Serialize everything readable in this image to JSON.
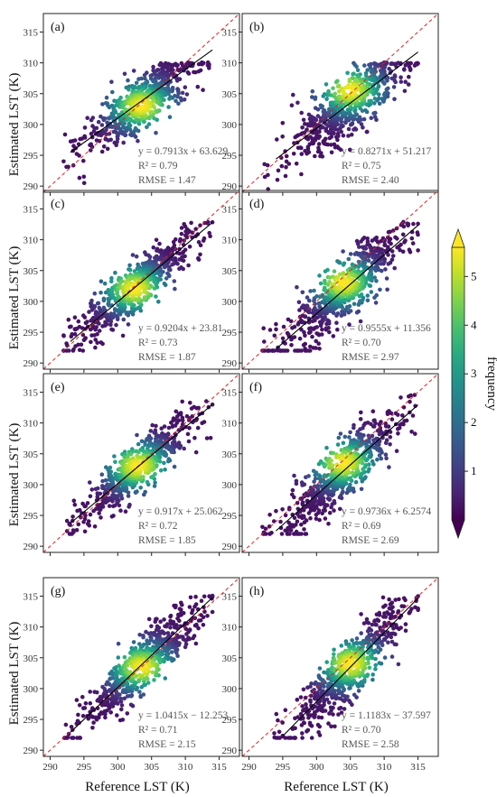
{
  "chart_data": {
    "type": "scatter",
    "subtype": "density-scatter (8 panels)",
    "xlabel": "Reference LST (K)",
    "ylabel": "Estimated LST (K)",
    "xlim": [
      289,
      318
    ],
    "ylim": [
      289,
      318
    ],
    "xticks": [
      290,
      295,
      300,
      305,
      310,
      315
    ],
    "yticks": [
      290,
      295,
      300,
      305,
      310,
      315
    ],
    "identity_line": "1:1 (red dashed)",
    "colorbar": {
      "label": "frequency",
      "ticks": [
        1,
        2,
        3,
        4,
        5
      ],
      "range": [
        0,
        5.6
      ],
      "colormap": "viridis"
    },
    "panels": [
      {
        "label": "(a)",
        "equation": "y = 0.7913x + 63.629",
        "r2": "R² = 0.79",
        "rmse": "RMSE = 1.47",
        "slope": 0.7913,
        "intercept": 63.629,
        "fit_x": [
          293,
          314
        ],
        "cloud": {
          "xmin": 292,
          "xmax": 313.5,
          "ymin": 289.5,
          "ymax": 310,
          "cx": 303.5,
          "cy": 303,
          "yspread": 2.2,
          "cap": 309.5
        }
      },
      {
        "label": "(b)",
        "equation": "y = 0.8271x + 51.217",
        "r2": "R² = 0.75",
        "rmse": "RMSE = 2.40",
        "slope": 0.8271,
        "intercept": 51.217,
        "fit_x": [
          294,
          315
        ],
        "cloud": {
          "xmin": 292,
          "xmax": 315,
          "ymin": 289.5,
          "ymax": 310,
          "cx": 305,
          "cy": 305.5,
          "yspread": 2.6,
          "cap": 309.5
        }
      },
      {
        "label": "(c)",
        "equation": "y = 0.9204x + 23.81",
        "r2": "R² = 0.73",
        "rmse": "RMSE = 1.87",
        "slope": 0.9204,
        "intercept": 23.81,
        "fit_x": [
          293,
          314
        ],
        "cloud": {
          "xmin": 292,
          "xmax": 314,
          "ymin": 292,
          "ymax": 314,
          "cx": 302.5,
          "cy": 302,
          "yspread": 2.0,
          "cap": 312.5
        }
      },
      {
        "label": "(d)",
        "equation": "y = 0.9555x + 11.356",
        "r2": "R² = 0.70",
        "rmse": "RMSE = 2.97",
        "slope": 0.9555,
        "intercept": 11.356,
        "fit_x": [
          294,
          315
        ],
        "cloud": {
          "xmin": 292,
          "xmax": 315,
          "ymin": 292,
          "ymax": 314,
          "cx": 304,
          "cy": 303,
          "yspread": 2.4,
          "cap": 312.5
        }
      },
      {
        "label": "(e)",
        "equation": "y = 0.917x + 25.062",
        "r2": "R² = 0.72",
        "rmse": "RMSE = 1.85",
        "slope": 0.917,
        "intercept": 25.062,
        "fit_x": [
          293,
          314
        ],
        "cloud": {
          "xmin": 292.5,
          "xmax": 314,
          "ymin": 292,
          "ymax": 314,
          "cx": 303,
          "cy": 303,
          "yspread": 1.9,
          "cap": 313.5
        }
      },
      {
        "label": "(f)",
        "equation": "y = 0.9736x + 6.2574",
        "r2": "R² = 0.69",
        "rmse": "RMSE = 2.69",
        "slope": 0.9736,
        "intercept": 6.2574,
        "fit_x": [
          294,
          315
        ],
        "cloud": {
          "xmin": 292,
          "xmax": 315,
          "ymin": 292,
          "ymax": 314.5,
          "cx": 304,
          "cy": 303.5,
          "yspread": 2.3,
          "cap": 314
        }
      },
      {
        "label": "(g)",
        "equation": "y = 1.0415x − 12.253",
        "r2": "R² = 0.71",
        "rmse": "RMSE = 2.15",
        "slope": 1.0415,
        "intercept": -12.253,
        "fit_x": [
          293,
          314
        ],
        "cloud": {
          "xmin": 292,
          "xmax": 314,
          "ymin": 292,
          "ymax": 315,
          "cx": 303.5,
          "cy": 303.5,
          "yspread": 2.2,
          "cap": 314.5
        }
      },
      {
        "label": "(h)",
        "equation": "y = 1.1183x − 37.597",
        "r2": "R² = 0.70",
        "rmse": "RMSE = 2.58",
        "slope": 1.1183,
        "intercept": -37.597,
        "fit_x": [
          295,
          315
        ],
        "cloud": {
          "xmin": 293,
          "xmax": 315,
          "ymin": 292,
          "ymax": 315,
          "cx": 305,
          "cy": 304,
          "yspread": 2.4,
          "cap": 314.5
        }
      }
    ]
  }
}
